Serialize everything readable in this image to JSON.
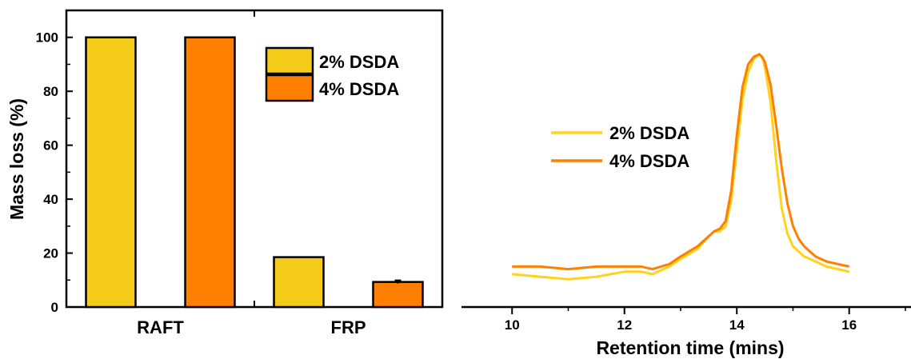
{
  "chart_data": [
    {
      "type": "bar",
      "categories": [
        "RAFT",
        "FRP"
      ],
      "series": [
        {
          "name": "2% DSDA",
          "values": [
            100,
            18.5
          ],
          "errors": [
            0,
            0
          ],
          "color": "#F5CB1A"
        },
        {
          "name": "4% DSDA",
          "values": [
            100,
            9.3
          ],
          "errors": [
            0,
            0.6
          ],
          "color": "#FF8000"
        }
      ],
      "ylabel": "Mass loss (%)",
      "xlabel": "",
      "ylim": [
        0,
        110
      ],
      "yticks": [
        0,
        20,
        40,
        60,
        80,
        100
      ],
      "legend_position": "top-right",
      "grid": false
    },
    {
      "type": "line",
      "xlabel": "Retention time (mins)",
      "ylabel": "",
      "xlim": [
        9.1,
        17.1
      ],
      "xticks": [
        10,
        12,
        14,
        16
      ],
      "ylim": [
        0,
        1.12
      ],
      "legend_position": "center-left",
      "grid": false,
      "series": [
        {
          "name": "2% DSDA",
          "color": "#FFD21C",
          "x": [
            10.0,
            10.5,
            11.0,
            11.5,
            12.0,
            12.3,
            12.5,
            12.8,
            13.0,
            13.3,
            13.5,
            13.6,
            13.7,
            13.8,
            13.9,
            14.0,
            14.1,
            14.2,
            14.3,
            14.4,
            14.45,
            14.5,
            14.6,
            14.7,
            14.8,
            14.9,
            15.0,
            15.1,
            15.2,
            15.4,
            15.6,
            15.8,
            16.0
          ],
          "y": [
            0.13,
            0.12,
            0.11,
            0.12,
            0.14,
            0.14,
            0.13,
            0.16,
            0.19,
            0.23,
            0.28,
            0.3,
            0.3,
            0.32,
            0.42,
            0.62,
            0.82,
            0.93,
            0.98,
            1.0,
            0.99,
            0.95,
            0.81,
            0.58,
            0.39,
            0.29,
            0.24,
            0.22,
            0.2,
            0.18,
            0.16,
            0.15,
            0.14
          ]
        },
        {
          "name": "4% DSDA",
          "color": "#FF8000",
          "x": [
            10.0,
            10.5,
            11.0,
            11.5,
            12.0,
            12.3,
            12.5,
            12.8,
            13.0,
            13.3,
            13.5,
            13.6,
            13.7,
            13.8,
            13.9,
            14.0,
            14.1,
            14.2,
            14.3,
            14.4,
            14.45,
            14.5,
            14.6,
            14.7,
            14.8,
            14.9,
            15.0,
            15.1,
            15.2,
            15.4,
            15.6,
            15.8,
            16.0
          ],
          "y": [
            0.16,
            0.16,
            0.15,
            0.16,
            0.16,
            0.16,
            0.15,
            0.17,
            0.2,
            0.24,
            0.28,
            0.3,
            0.31,
            0.34,
            0.46,
            0.68,
            0.87,
            0.96,
            0.99,
            1.0,
            0.99,
            0.97,
            0.88,
            0.72,
            0.55,
            0.41,
            0.32,
            0.27,
            0.24,
            0.2,
            0.18,
            0.17,
            0.16
          ]
        }
      ]
    }
  ]
}
